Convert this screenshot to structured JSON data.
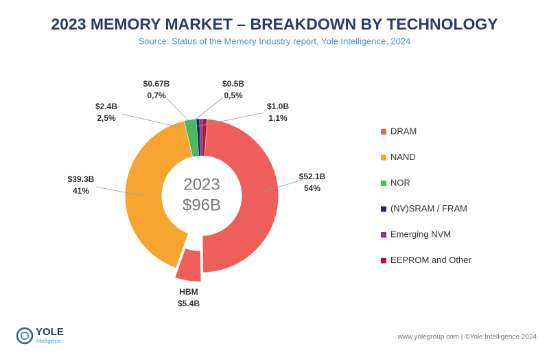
{
  "chart_data": {
    "type": "donut",
    "title": "2023 MEMORY MARKET – BREAKDOWN BY TECHNOLOGY",
    "subtitle": "Source: Status of the Memory Industry report, Yole Intelligence, 2024",
    "center_year": "2023",
    "center_total": "$96B",
    "categories": [
      "DRAM",
      "NAND",
      "NOR",
      "(NV)SRAM / FRAM",
      "Emerging NVM",
      "EEPROM and Other"
    ],
    "values": [
      52.1,
      39.3,
      2.4,
      0.67,
      0.5,
      1.0
    ],
    "value_labels": [
      "$52.1B",
      "$39.3B",
      "$2.4B",
      "$0.67B",
      "$0.5B",
      "$1.0B"
    ],
    "percents": [
      54,
      41,
      2.5,
      0.7,
      0.5,
      1.1
    ],
    "percent_labels": [
      "54%",
      "41%",
      "2,5%",
      "0,7%",
      "0,5%",
      "1,1%"
    ],
    "colors": [
      "#ee5f5c",
      "#f7a531",
      "#4bb862",
      "#1d2d6b",
      "#7c3f8e",
      "#b3154b"
    ],
    "sub_slice": {
      "name": "HBM",
      "value": 5.4,
      "value_label": "$5.4B"
    }
  },
  "footer": {
    "logo": "YOLE",
    "logo_sub": "Intelligence",
    "credit": "www.yolegroup.com | ©Yole Intelligence 2024"
  }
}
